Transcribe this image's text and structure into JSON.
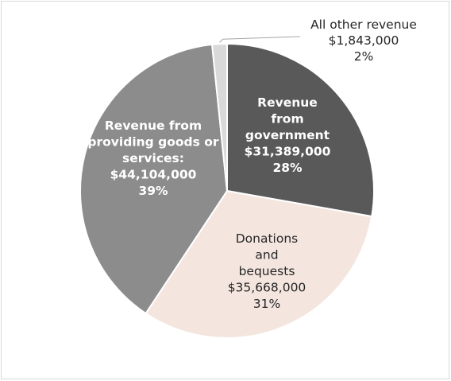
{
  "chart_data": {
    "type": "pie",
    "title": "",
    "slices": [
      {
        "name": "Revenue from government",
        "value": 31389000,
        "value_label": "$31,389,000",
        "percent_label": "28%",
        "color": "#595959",
        "label_color": "#ffffff",
        "label_lines": [
          "Revenue",
          "from",
          "government",
          "$31,389,000",
          "28%"
        ]
      },
      {
        "name": "Donations and bequests",
        "value": 35668000,
        "value_label": "$35,668,000",
        "percent_label": "31%",
        "color": "#f4e6df",
        "label_color": "#262626",
        "label_lines": [
          "Donations",
          "and",
          "bequests",
          "$35,668,000",
          "31%"
        ]
      },
      {
        "name": "Revenue from providing goods or services:",
        "value": 44104000,
        "value_label": "$44,104,000",
        "percent_label": "39%",
        "color": "#8c8c8c",
        "label_color": "#ffffff",
        "label_lines": [
          "Revenue from",
          "providing goods or",
          "services:",
          "$44,104,000",
          "39%"
        ]
      },
      {
        "name": "All other revenue",
        "value": 1843000,
        "value_label": "$1,843,000",
        "percent_label": "2%",
        "color": "#d9d9d9",
        "label_color": "#262626",
        "label_lines": [
          "All other revenue",
          "$1,843,000",
          "2%"
        ]
      }
    ],
    "start_angle_deg": 0,
    "direction": "clockwise",
    "legend": "none"
  }
}
